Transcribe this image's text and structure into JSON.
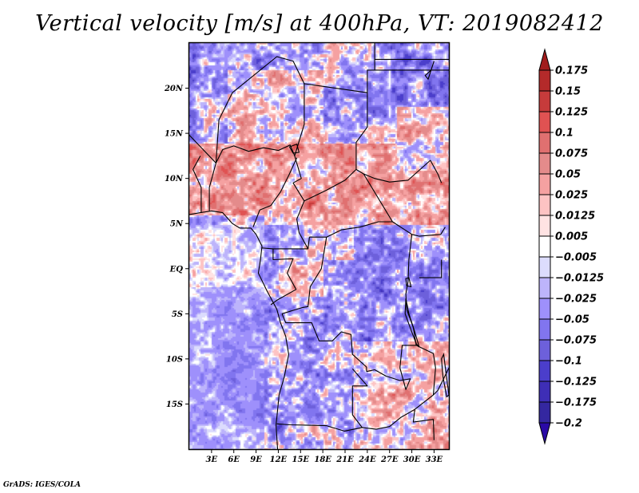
{
  "chart_data": {
    "type": "heatmap",
    "title": "Vertical velocity [m/s] at 400hPa, VT: 2019082412",
    "variable": "Vertical velocity",
    "units": "m/s",
    "level": "400hPa",
    "valid_time": "2019082412",
    "xlabel": "",
    "ylabel": "",
    "x_range_deg": [
      0,
      35
    ],
    "y_range_deg": [
      -20,
      25
    ],
    "x_ticks": [
      {
        "value": 3,
        "label": "3E"
      },
      {
        "value": 6,
        "label": "6E"
      },
      {
        "value": 9,
        "label": "9E"
      },
      {
        "value": 12,
        "label": "12E"
      },
      {
        "value": 15,
        "label": "15E"
      },
      {
        "value": 18,
        "label": "18E"
      },
      {
        "value": 21,
        "label": "21E"
      },
      {
        "value": 24,
        "label": "24E"
      },
      {
        "value": 27,
        "label": "27E"
      },
      {
        "value": 30,
        "label": "30E"
      },
      {
        "value": 33,
        "label": "33E"
      }
    ],
    "y_ticks": [
      {
        "value": 20,
        "label": "20N"
      },
      {
        "value": 15,
        "label": "15N"
      },
      {
        "value": 10,
        "label": "10N"
      },
      {
        "value": 5,
        "label": "5N"
      },
      {
        "value": 0,
        "label": "EQ"
      },
      {
        "value": -5,
        "label": "5S"
      },
      {
        "value": -10,
        "label": "10S"
      },
      {
        "value": -15,
        "label": "15S"
      }
    ],
    "colorbar": {
      "orientation": "vertical",
      "placement": "right",
      "extend": "both",
      "levels": [
        {
          "label": "0.175",
          "color": "#a11c1c"
        },
        {
          "label": "0.15",
          "color": "#b52828"
        },
        {
          "label": "0.125",
          "color": "#c83a3a"
        },
        {
          "label": "0.1",
          "color": "#df5353"
        },
        {
          "label": "0.075",
          "color": "#e07272"
        },
        {
          "label": "0.05",
          "color": "#e28c8c"
        },
        {
          "label": "0.025",
          "color": "#f3a0a0"
        },
        {
          "label": "0.0125",
          "color": "#fdc4c4"
        },
        {
          "label": "0.005",
          "color": "#ffe2e2"
        },
        {
          "label": "-0.005",
          "color": "#ffffff"
        },
        {
          "label": "-0.0125",
          "color": "#dcdcfc"
        },
        {
          "label": "-0.025",
          "color": "#bdb5fb"
        },
        {
          "label": "-0.05",
          "color": "#9d8ffb"
        },
        {
          "label": "-0.075",
          "color": "#8175ef"
        },
        {
          "label": "-0.1",
          "color": "#6e62dc"
        },
        {
          "label": "-0.125",
          "color": "#4c3fca"
        },
        {
          "label": "-0.175",
          "color": "#3f2fb8"
        },
        {
          "label": "-0.2",
          "color": "#33289f"
        }
      ],
      "over_color": "#a11c1c",
      "under_color": "#2a0aa6"
    },
    "field_description": "Noisy convective field: strong upward (red) over Sahel band ~5N-15N, patches over central Sahara; downward/weak (blue) over Gulf of Guinea, Congo Basin south of EQ, Atlantic and southern Africa; reddish streaks over Zambia/Angola ~10S-17S",
    "overlays": [
      "country borders",
      "coastlines",
      "lakes"
    ]
  },
  "footer": {
    "credit": "GrADS: IGES/COLA"
  }
}
